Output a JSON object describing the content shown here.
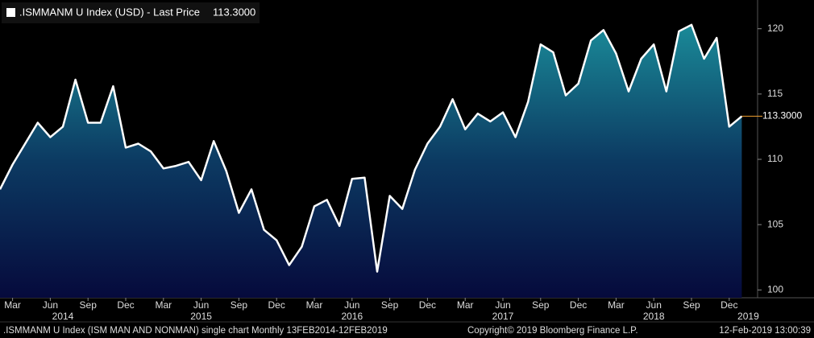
{
  "chart_data": {
    "type": "area",
    "header": ".ISMMANM U Index (USD) - Last Price",
    "last_price": 113.3,
    "last_price_label": "113.3000",
    "footer_left": ".ISMMANM U Index (ISM MAN AND NONMAN) single chart  Monthly 13FEB2014-12FEB2019",
    "footer_center": "Copyright© 2019 Bloomberg Finance L.P.",
    "footer_right": "12-Feb-2019 13:00:39",
    "x": [
      "2014-02",
      "2014-03",
      "2014-04",
      "2014-05",
      "2014-06",
      "2014-07",
      "2014-08",
      "2014-09",
      "2014-10",
      "2014-11",
      "2014-12",
      "2015-01",
      "2015-02",
      "2015-03",
      "2015-04",
      "2015-05",
      "2015-06",
      "2015-07",
      "2015-08",
      "2015-09",
      "2015-10",
      "2015-11",
      "2015-12",
      "2016-01",
      "2016-02",
      "2016-03",
      "2016-04",
      "2016-05",
      "2016-06",
      "2016-07",
      "2016-08",
      "2016-09",
      "2016-10",
      "2016-11",
      "2016-12",
      "2017-01",
      "2017-02",
      "2017-03",
      "2017-04",
      "2017-05",
      "2017-06",
      "2017-07",
      "2017-08",
      "2017-09",
      "2017-10",
      "2017-11",
      "2017-12",
      "2018-01",
      "2018-02",
      "2018-03",
      "2018-04",
      "2018-05",
      "2018-06",
      "2018-07",
      "2018-08",
      "2018-09",
      "2018-10",
      "2018-11",
      "2018-12",
      "2019-01"
    ],
    "series": [
      {
        "name": ".ISMMANM U Index",
        "color": "#ffffff",
        "values": [
          107.7,
          109.6,
          111.2,
          112.8,
          111.7,
          112.5,
          116.1,
          112.8,
          112.8,
          115.6,
          110.9,
          111.2,
          110.6,
          109.3,
          109.5,
          109.8,
          108.4,
          111.4,
          109.1,
          105.9,
          107.7,
          104.6,
          103.8,
          101.9,
          103.3,
          106.4,
          106.9,
          104.9,
          108.5,
          108.6,
          101.4,
          107.2,
          106.2,
          109.2,
          111.2,
          112.5,
          114.6,
          112.3,
          113.5,
          112.9,
          113.6,
          111.7,
          114.4,
          118.8,
          118.2,
          114.9,
          115.8,
          119.1,
          119.9,
          118.1,
          115.2,
          117.7,
          118.8,
          115.2,
          119.8,
          120.3,
          117.7,
          119.3,
          112.5,
          113.3
        ]
      }
    ],
    "ylim": [
      99.4,
      122.2
    ],
    "yticks": [
      100,
      105,
      110,
      115,
      120
    ],
    "xticks": [
      {
        "value": "2014-03",
        "label": "Mar"
      },
      {
        "value": "2014-06",
        "label": "Jun"
      },
      {
        "value": "2014-09",
        "label": "Sep"
      },
      {
        "value": "2014-12",
        "label": "Dec"
      },
      {
        "value": "2015-03",
        "label": "Mar"
      },
      {
        "value": "2015-06",
        "label": "Jun"
      },
      {
        "value": "2015-09",
        "label": "Sep"
      },
      {
        "value": "2015-12",
        "label": "Dec"
      },
      {
        "value": "2016-03",
        "label": "Mar"
      },
      {
        "value": "2016-06",
        "label": "Jun"
      },
      {
        "value": "2016-09",
        "label": "Sep"
      },
      {
        "value": "2016-12",
        "label": "Dec"
      },
      {
        "value": "2017-03",
        "label": "Mar"
      },
      {
        "value": "2017-06",
        "label": "Jun"
      },
      {
        "value": "2017-09",
        "label": "Sep"
      },
      {
        "value": "2017-12",
        "label": "Dec"
      },
      {
        "value": "2018-03",
        "label": "Mar"
      },
      {
        "value": "2018-06",
        "label": "Jun"
      },
      {
        "value": "2018-09",
        "label": "Sep"
      },
      {
        "value": "2018-12",
        "label": "Dec"
      }
    ],
    "year_ticks": [
      {
        "value": "2014-07",
        "label": "2014"
      },
      {
        "value": "2015-06",
        "label": "2015"
      },
      {
        "value": "2016-06",
        "label": "2016"
      },
      {
        "value": "2017-06",
        "label": "2017"
      },
      {
        "value": "2018-06",
        "label": "2018"
      },
      {
        "value": "2019-01",
        "label": "2019"
      }
    ]
  }
}
